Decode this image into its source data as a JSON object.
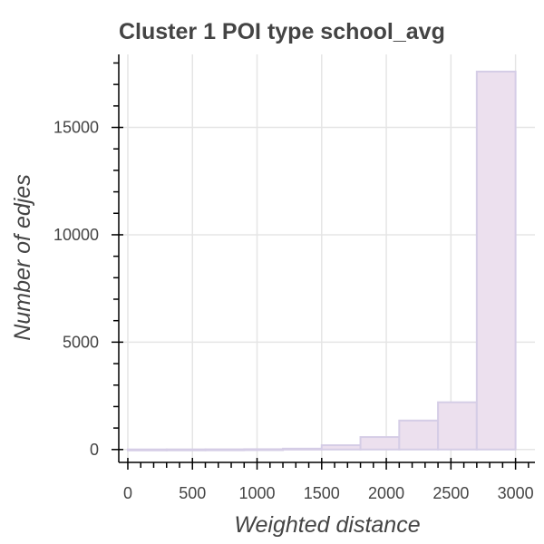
{
  "chart_data": {
    "type": "bar",
    "title": "Cluster 1 POI type school_avg",
    "xlabel": "Weighted distance",
    "ylabel": "Number of edjes",
    "xlim": [
      -70,
      3150
    ],
    "ylim": [
      -600,
      18400
    ],
    "x_ticks": [
      0,
      500,
      1000,
      1500,
      2000,
      2500,
      3000
    ],
    "y_ticks": [
      0,
      5000,
      10000,
      15000
    ],
    "grid": true,
    "bin_edges": [
      0,
      300,
      600,
      900,
      1200,
      1500,
      1800,
      2100,
      2400,
      2700,
      3000
    ],
    "values": [
      3,
      5,
      8,
      15,
      40,
      200,
      580,
      1350,
      2200,
      17600
    ],
    "colors": {
      "bar_fill": "#ece0ee",
      "bar_stroke": "#d5cde6",
      "grid": "#e5e5e5",
      "axis": "#000000",
      "text": "#444444"
    }
  }
}
